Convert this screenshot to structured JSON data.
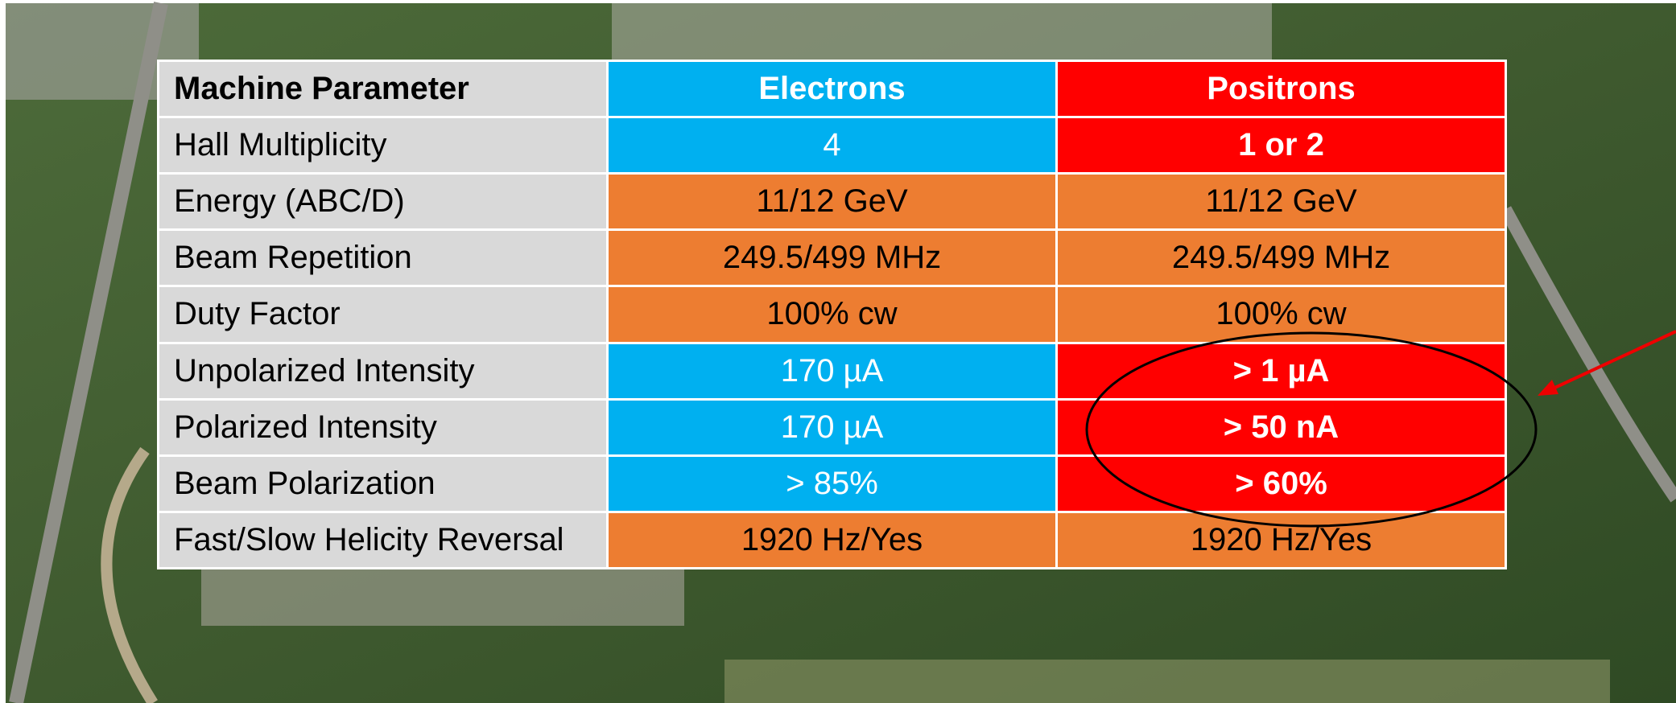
{
  "table": {
    "header": [
      "Machine Parameter",
      "Electrons",
      "Positrons"
    ],
    "rows": [
      [
        "Hall Multiplicity",
        "4",
        "1 or 2"
      ],
      [
        "Energy (ABC/D)",
        "11/12 GeV",
        "11/12 GeV"
      ],
      [
        "Beam Repetition",
        "249.5/499 MHz",
        "249.5/499 MHz"
      ],
      [
        "Duty Factor",
        "100% cw",
        "100% cw"
      ],
      [
        "Unpolarized Intensity",
        "170 µA",
        "> 1 µA"
      ],
      [
        "Polarized Intensity",
        "170 µA",
        "> 50 nA"
      ],
      [
        "Beam Polarization",
        "> 85%",
        "> 60%"
      ],
      [
        "Fast/Slow Helicity Reversal",
        "1920 Hz/Yes",
        "1920 Hz/Yes"
      ]
    ]
  }
}
